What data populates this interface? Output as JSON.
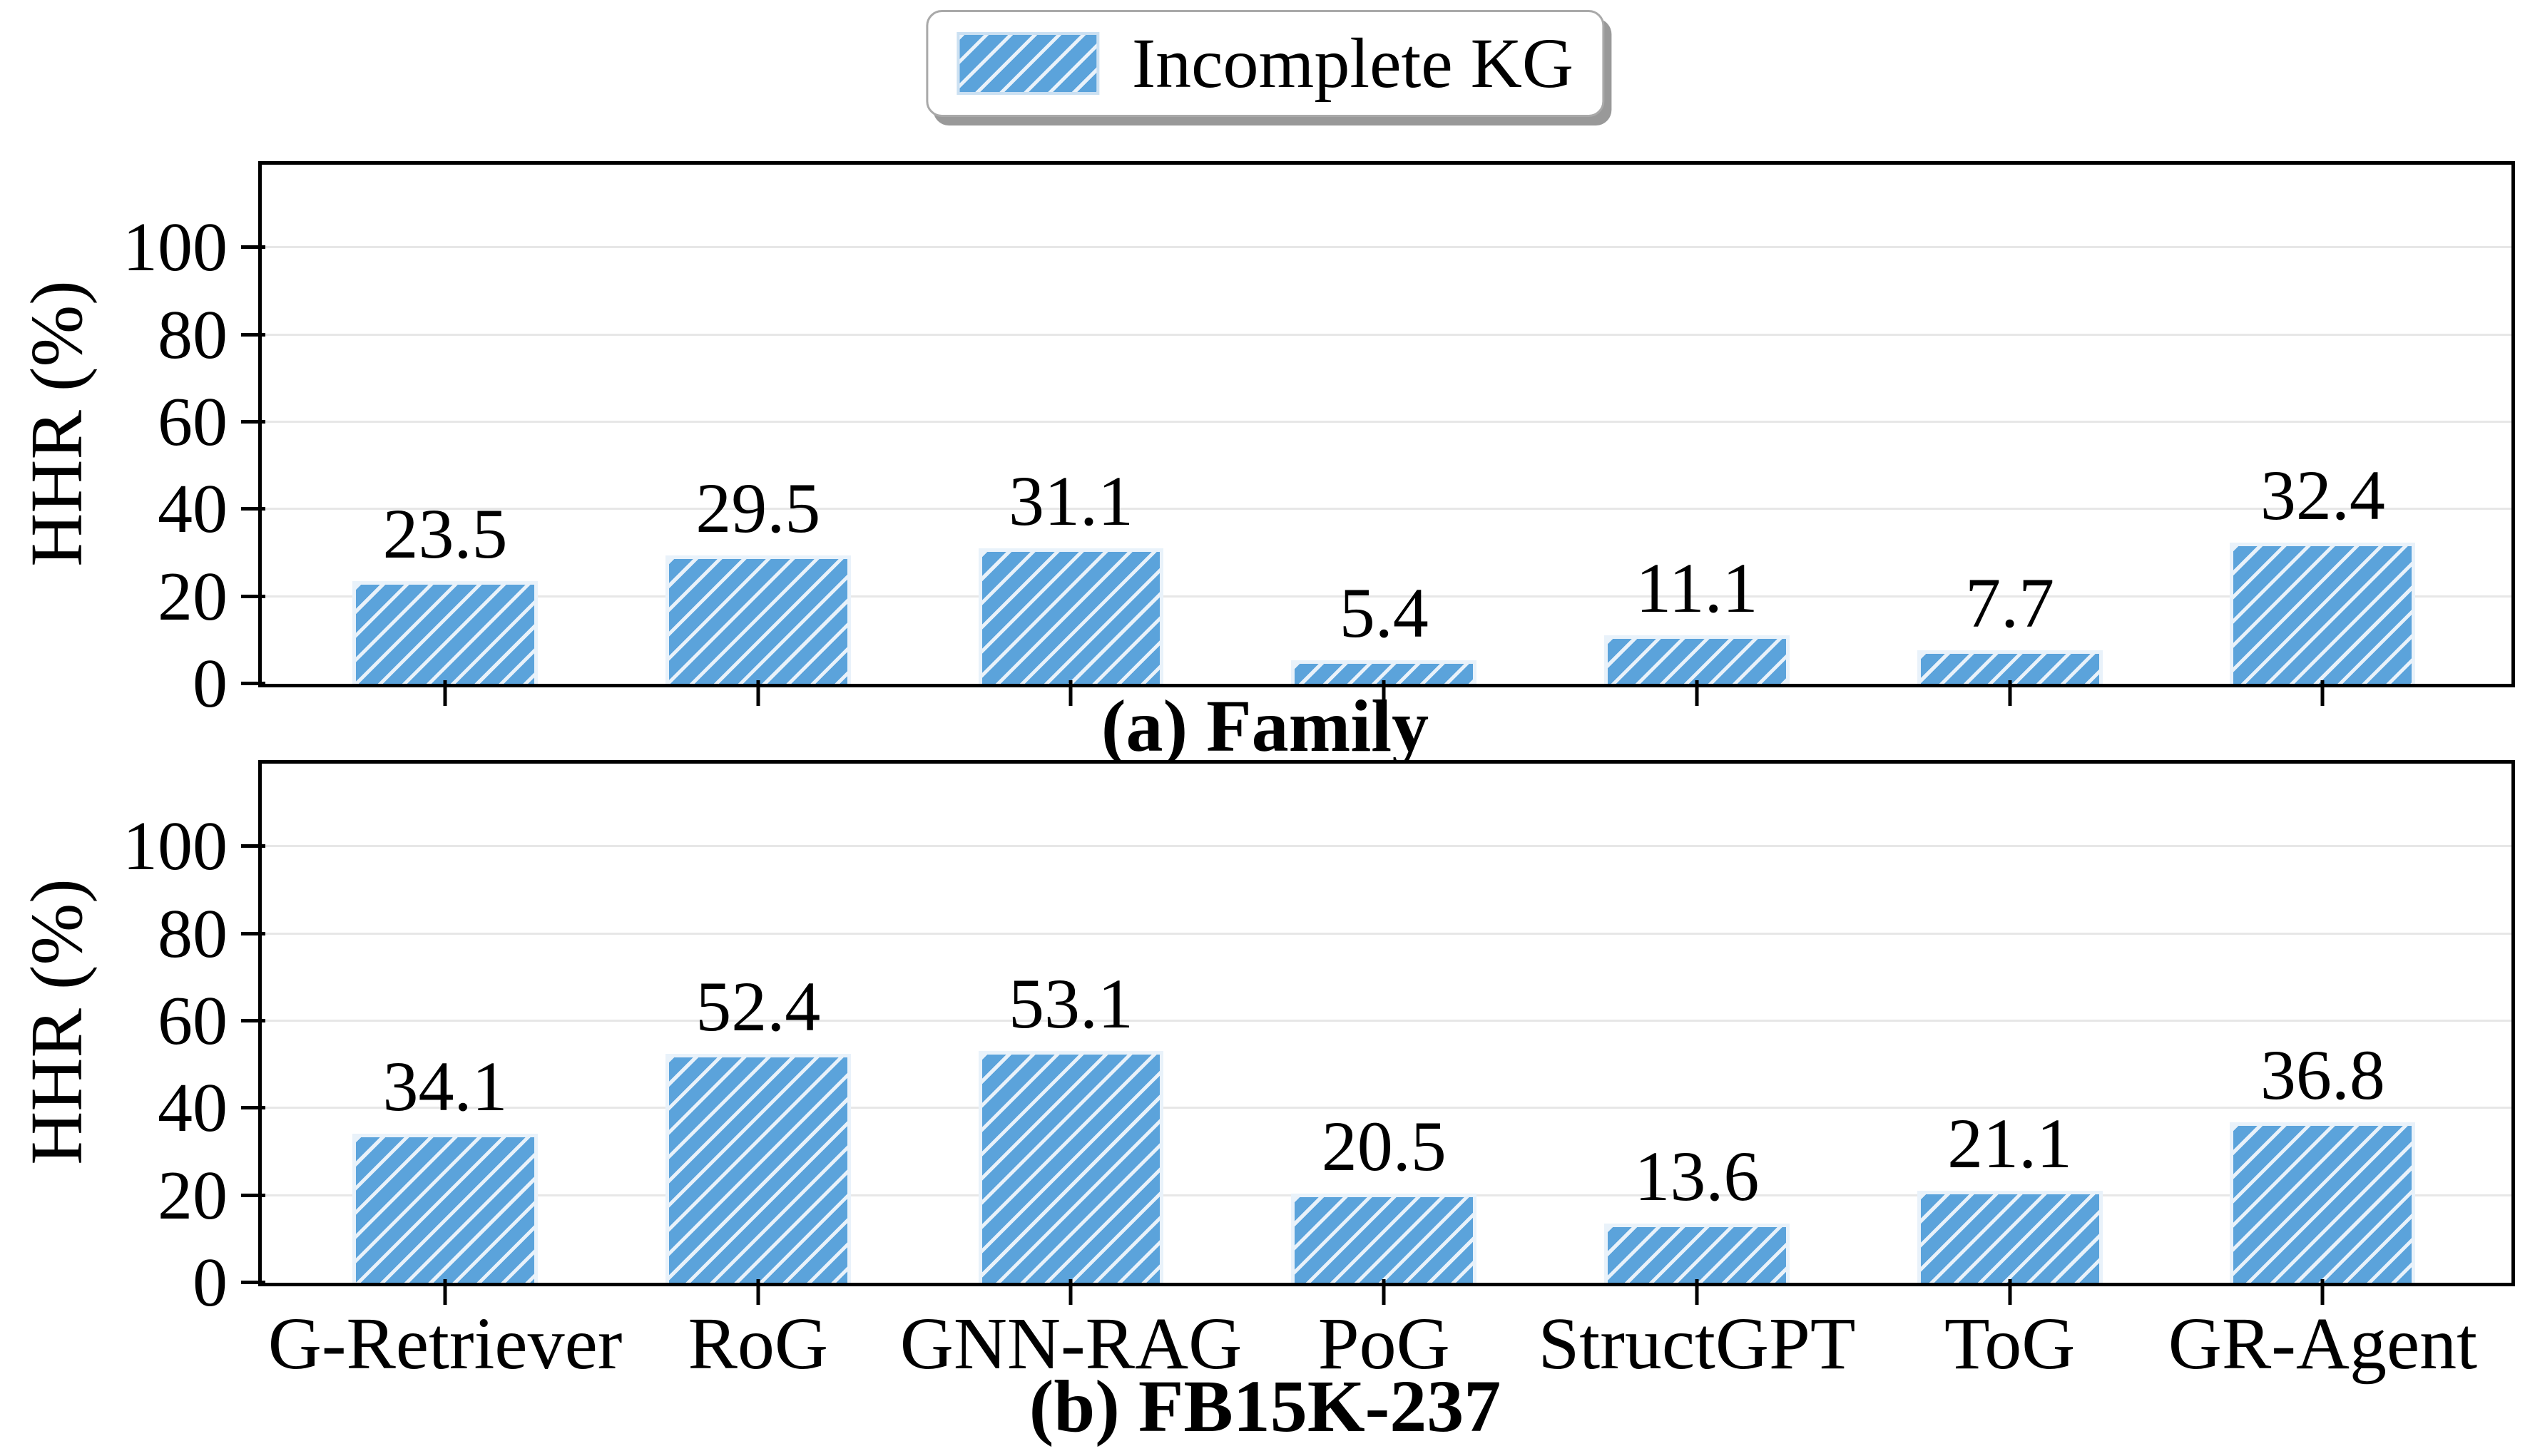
{
  "figure": {
    "background": "#FFFFFF",
    "font_style": "serif"
  },
  "colors": {
    "bar_fill": "#5BA3DB",
    "bar_hatch": "#E9F2FA",
    "gridline": "#E7E7E7",
    "axis_spine": "#000000",
    "text": "#000000",
    "legend_border": "#A9A9A9",
    "legend_shadow": "#999999"
  },
  "legend": {
    "label": "Incomplete KG",
    "swatch_style": "blue-diagonal-hatch",
    "position": "figure-top-center"
  },
  "chart_data": [
    {
      "type": "bar",
      "title": "(a) Family",
      "ylabel": "HHR (%)",
      "categories": [
        "G-Retriever",
        "RoG",
        "GNN-RAG",
        "PoG",
        "StructGPT",
        "ToG",
        "GR-Agent"
      ],
      "series": [
        {
          "name": "Incomplete KG",
          "values": [
            23.5,
            29.5,
            31.1,
            5.4,
            11.1,
            7.7,
            32.4
          ]
        }
      ],
      "bar_labels": [
        "23.5",
        "29.5",
        "31.1",
        "5.4",
        "11.1",
        "7.7",
        "32.4"
      ],
      "yticks": [
        0,
        20,
        40,
        60,
        80,
        100
      ],
      "ylim": [
        0,
        119
      ],
      "grid": "horizontal",
      "legend_position": "shared-figure-top",
      "show_x_tick_labels": false,
      "hatch": "diagonal-forward"
    },
    {
      "type": "bar",
      "title": "(b) FB15K-237",
      "ylabel": "HHR (%)",
      "categories": [
        "G-Retriever",
        "RoG",
        "GNN-RAG",
        "PoG",
        "StructGPT",
        "ToG",
        "GR-Agent"
      ],
      "series": [
        {
          "name": "Incomplete KG",
          "values": [
            34.1,
            52.4,
            53.1,
            20.5,
            13.6,
            21.1,
            36.8
          ]
        }
      ],
      "bar_labels": [
        "34.1",
        "52.4",
        "53.1",
        "20.5",
        "13.6",
        "21.1",
        "36.8"
      ],
      "yticks": [
        0,
        20,
        40,
        60,
        80,
        100
      ],
      "ylim": [
        0,
        119
      ],
      "grid": "horizontal",
      "legend_position": "shared-figure-top",
      "show_x_tick_labels": true,
      "hatch": "diagonal-forward"
    }
  ]
}
